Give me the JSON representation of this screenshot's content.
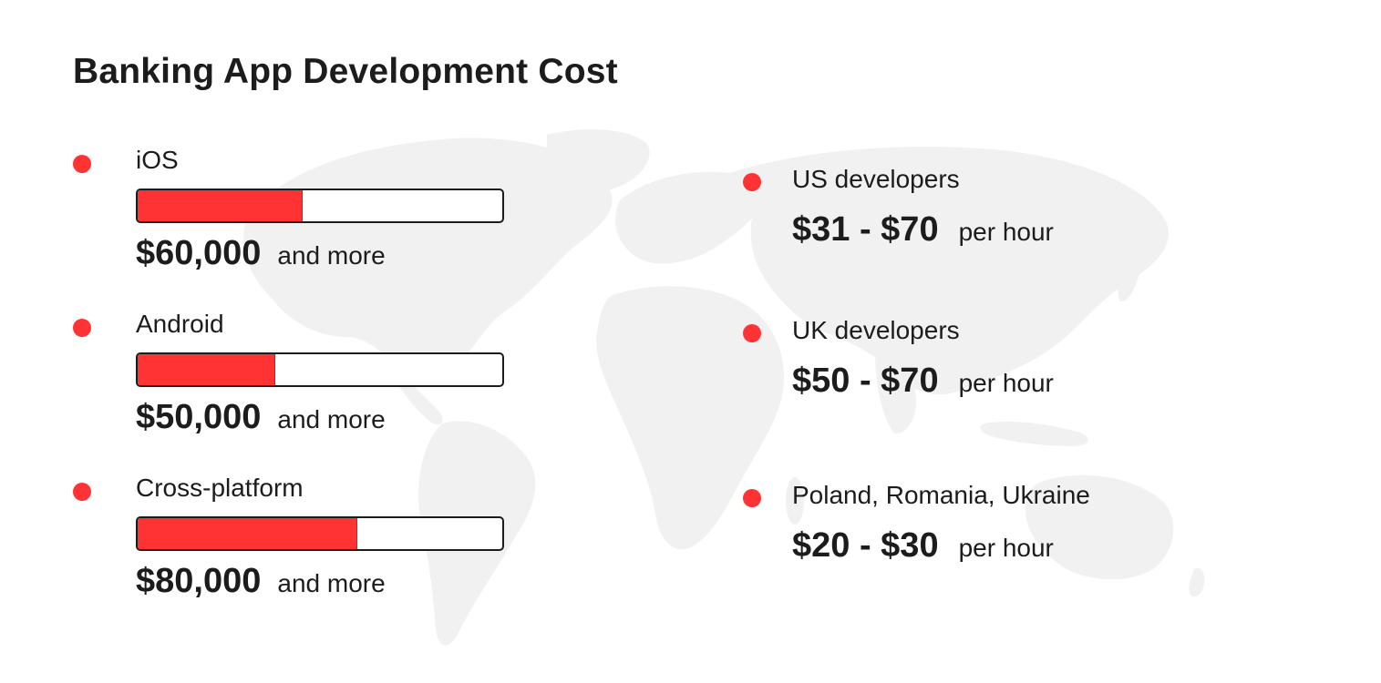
{
  "title": "Banking App Development Cost",
  "colors": {
    "accent": "#ff3333",
    "text": "#1c1c1c",
    "map": "#f1f1f1"
  },
  "platforms": [
    {
      "label": "iOS",
      "amount": "$60,000",
      "suffix": "and more",
      "bar_fill_percent": 45
    },
    {
      "label": "Android",
      "amount": "$50,000",
      "suffix": "and more",
      "bar_fill_percent": 37.5
    },
    {
      "label": "Cross-platform",
      "amount": "$80,000",
      "suffix": "and more",
      "bar_fill_percent": 60
    }
  ],
  "rates": [
    {
      "label": "US developers",
      "range": "$31 - $70",
      "suffix": "per hour"
    },
    {
      "label": "UK developers",
      "range": "$50 - $70",
      "suffix": "per hour"
    },
    {
      "label": "Poland, Romania, Ukraine",
      "range": "$20 - $30",
      "suffix": "per hour"
    }
  ]
}
